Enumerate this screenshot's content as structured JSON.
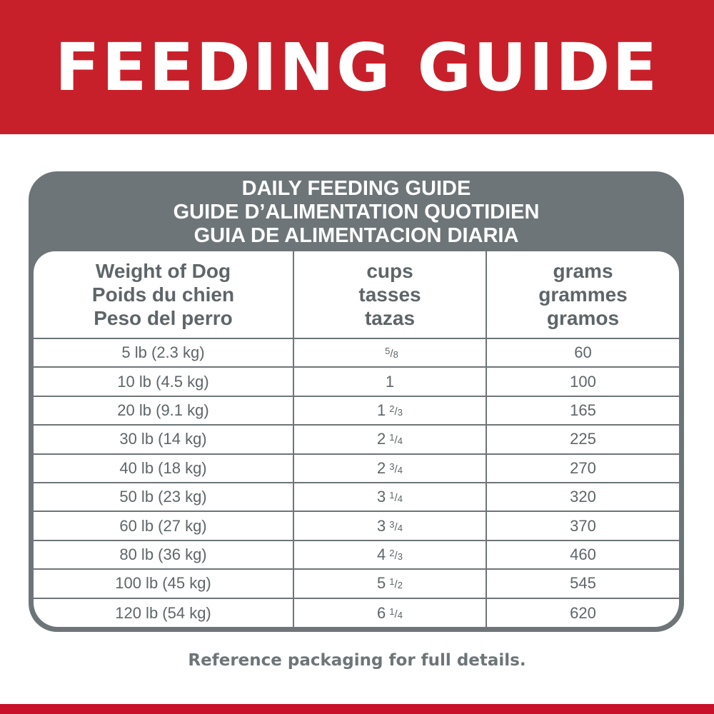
{
  "header": {
    "title": "FEEDING GUIDE"
  },
  "table": {
    "titles": [
      "DAILY FEEDING GUIDE",
      "GUIDE D’ALIMENTATION QUOTIDIEN",
      "GUIA DE ALIMENTACION DIARIA"
    ],
    "columns": [
      [
        "Weight of Dog",
        "Poids du chien",
        "Peso del perro"
      ],
      [
        "cups",
        "tasses",
        "tazas"
      ],
      [
        "grams",
        "grammes",
        "gramos"
      ]
    ],
    "rows": [
      {
        "weight": "5 lb (2.3 kg)",
        "cups_whole": "",
        "cups_num": "5",
        "cups_den": "8",
        "grams": "60"
      },
      {
        "weight": "10 lb (4.5 kg)",
        "cups_whole": "1",
        "cups_num": "",
        "cups_den": "",
        "grams": "100"
      },
      {
        "weight": "20 lb (9.1 kg)",
        "cups_whole": "1",
        "cups_num": "2",
        "cups_den": "3",
        "grams": "165"
      },
      {
        "weight": "30 lb (14 kg)",
        "cups_whole": "2",
        "cups_num": "1",
        "cups_den": "4",
        "grams": "225"
      },
      {
        "weight": "40 lb (18 kg)",
        "cups_whole": "2",
        "cups_num": "3",
        "cups_den": "4",
        "grams": "270"
      },
      {
        "weight": "50 lb (23 kg)",
        "cups_whole": "3",
        "cups_num": "1",
        "cups_den": "4",
        "grams": "320"
      },
      {
        "weight": "60 lb (27 kg)",
        "cups_whole": "3",
        "cups_num": "3",
        "cups_den": "4",
        "grams": "370"
      },
      {
        "weight": "80 lb (36 kg)",
        "cups_whole": "4",
        "cups_num": "2",
        "cups_den": "3",
        "grams": "460"
      },
      {
        "weight": "100 lb (45 kg)",
        "cups_whole": "5",
        "cups_num": "1",
        "cups_den": "2",
        "grams": "545"
      },
      {
        "weight": "120 lb (54 kg)",
        "cups_whole": "6",
        "cups_num": "1",
        "cups_den": "4",
        "grams": "620"
      }
    ]
  },
  "footer": {
    "note": "Reference packaging for full details."
  },
  "colors": {
    "brand_red": "#c8202a",
    "table_gray": "#6d7578"
  }
}
